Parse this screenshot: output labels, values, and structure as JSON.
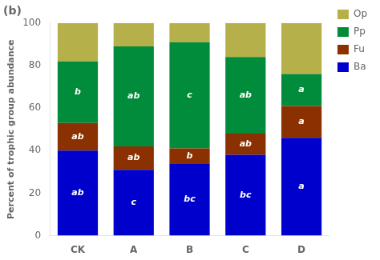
{
  "chart_data": {
    "type": "bar",
    "title": "(b)",
    "categories": [
      "CK",
      "A",
      "B",
      "C",
      "D"
    ],
    "series": [
      {
        "name": "Ba",
        "color": "#0000CC",
        "values": [
          40,
          31,
          34,
          38,
          46
        ]
      },
      {
        "name": "Fu",
        "color": "#8B3000",
        "values": [
          13,
          11,
          7,
          10,
          15
        ]
      },
      {
        "name": "Pp",
        "color": "#008C3A",
        "values": [
          29,
          47,
          50,
          36,
          15
        ]
      },
      {
        "name": "Op",
        "color": "#B5B04A",
        "values": [
          18,
          11,
          9,
          16,
          24
        ]
      }
    ],
    "stacked": true,
    "ylabel": "Percent of trophic group abundance",
    "ylim": [
      0,
      100
    ],
    "yticks": [
      0,
      20,
      40,
      60,
      80,
      100
    ],
    "grid": false,
    "legend": "right",
    "annotations": [
      {
        "series": "Ba",
        "texts": [
          "ab",
          "c",
          "bc",
          "bc",
          "a"
        ]
      },
      {
        "series": "Fu",
        "texts": [
          "ab",
          "ab",
          "b",
          "ab",
          "a"
        ]
      },
      {
        "series": "Pp",
        "texts": [
          "b",
          "ab",
          "c",
          "ab",
          "a"
        ]
      }
    ]
  }
}
